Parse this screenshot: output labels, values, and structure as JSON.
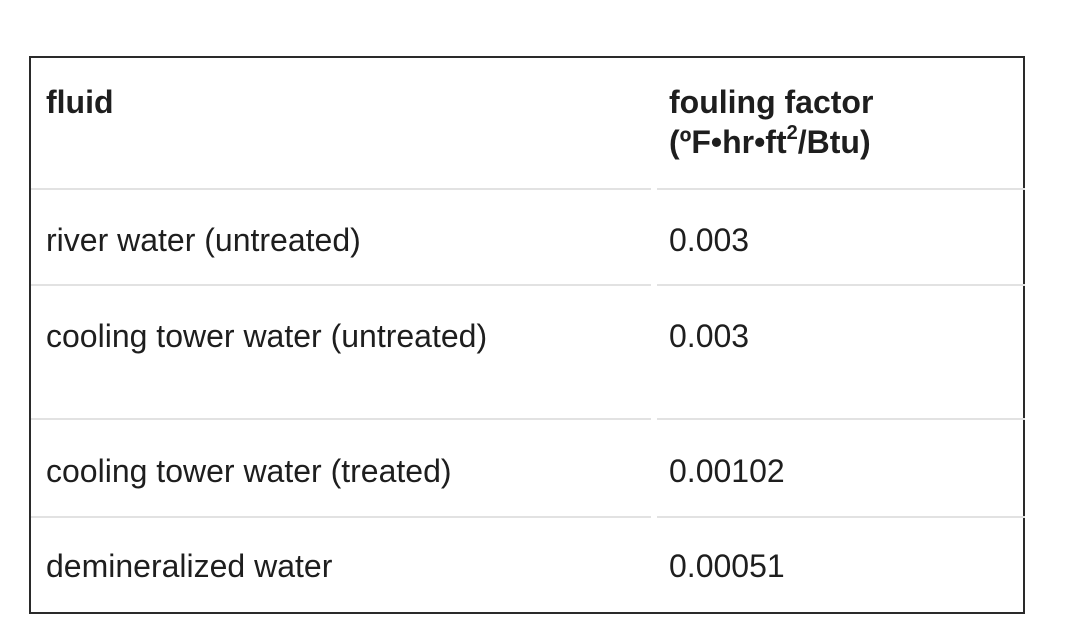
{
  "table": {
    "header": {
      "fluid": "fluid",
      "factor_line1": "fouling factor",
      "factor_line2_prefix": "(ºF•hr•ft",
      "factor_line2_sup": "2",
      "factor_line2_suffix": "/Btu)"
    },
    "rows": [
      {
        "fluid": "river water (untreated)",
        "factor": "0.003"
      },
      {
        "fluid": "cooling tower water (untreated)",
        "factor": "0.003"
      },
      {
        "fluid": "cooling tower water (treated)",
        "factor": "0.00102"
      },
      {
        "fluid": "demineralized water",
        "factor": "0.00051"
      }
    ]
  }
}
